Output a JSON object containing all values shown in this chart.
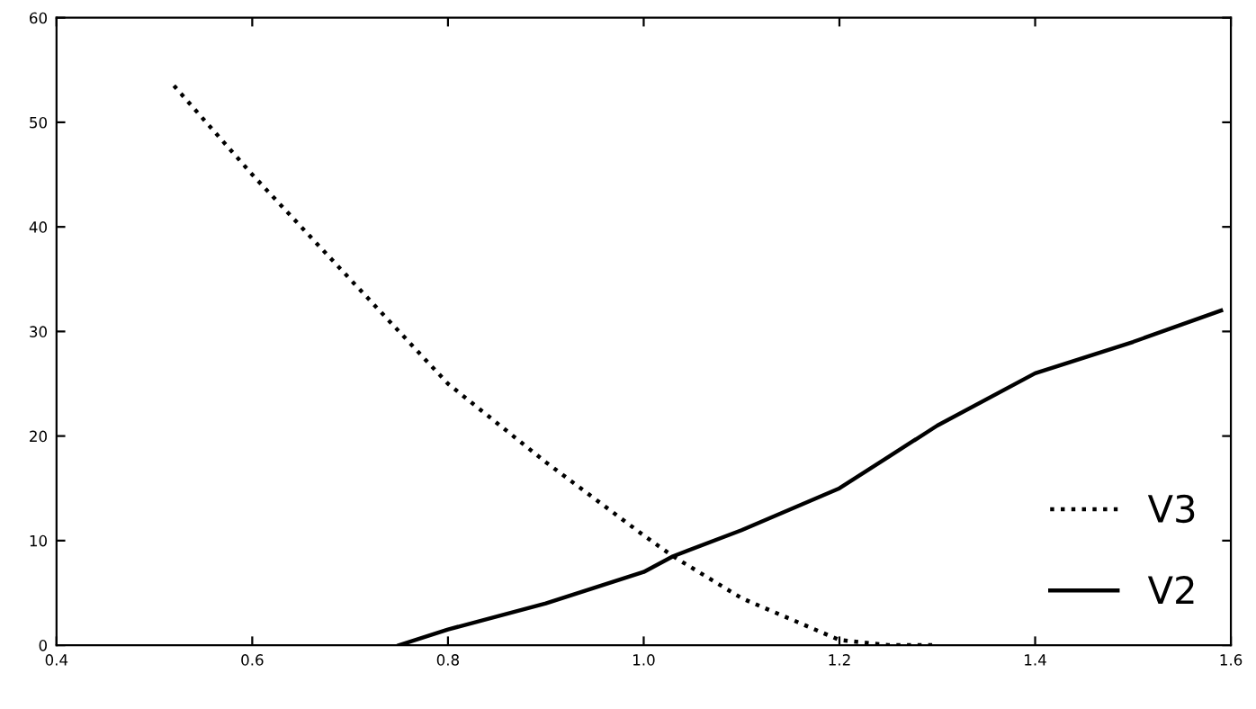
{
  "chart_data": {
    "type": "line",
    "xlim": [
      0.4,
      1.6
    ],
    "xticks": [
      0.4,
      0.6,
      0.8,
      {
        "value": 1,
        "label": "1.0"
      },
      1.2,
      1.4,
      1.6
    ],
    "ylim": [
      0,
      60
    ],
    "yticks": [
      0,
      10,
      20,
      30,
      40,
      50,
      60
    ],
    "grid": false,
    "legend": "bottom right",
    "marker": "none",
    "series": [
      {
        "name": "V3",
        "color": "#000000",
        "line_style": "dotted",
        "x": [
          0.52,
          0.6,
          0.7,
          0.8,
          0.9,
          1.0,
          1.03,
          1.1,
          1.2,
          1.25,
          1.3
        ],
        "values": [
          53.5,
          45,
          35,
          25,
          17.5,
          10.5,
          8.5,
          4.5,
          0.5,
          0,
          0
        ]
      },
      {
        "name": "V2",
        "color": "#000000",
        "line_style": "solid",
        "x": [
          0.75,
          0.8,
          0.9,
          1.0,
          1.03,
          1.1,
          1.2,
          1.3,
          1.4,
          1.5,
          1.59
        ],
        "values": [
          0,
          1.5,
          4,
          7,
          8.5,
          11,
          15,
          21,
          26,
          29,
          32
        ]
      }
    ]
  }
}
